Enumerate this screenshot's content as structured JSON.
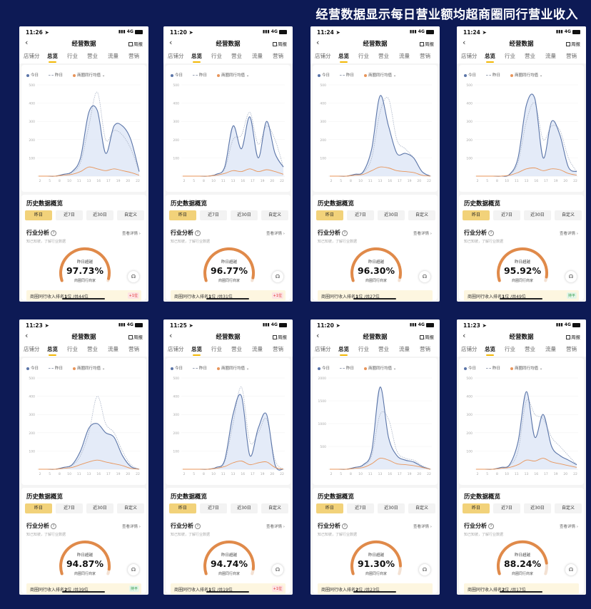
{
  "page_title": "经营数据显示每日营业额均超商圈同行营业收入",
  "common": {
    "nav_title": "经营数据",
    "weekly_label": "周报",
    "tabs": [
      "店铺分",
      "总览",
      "行业",
      "营业",
      "流量",
      "营销"
    ],
    "legend": [
      "今日",
      "昨日",
      "商圈同行均值"
    ],
    "history_title": "历史数据概览",
    "periods": [
      "昨日",
      "近7日",
      "近30日",
      "自定义"
    ],
    "industry_title": "行业分析",
    "industry_detail": "查看详情 ›",
    "industry_sub": "知己知彼，了解行业数据",
    "gauge_label": "昨日超越",
    "gauge_caption": "商圈同行商家",
    "rank_prefix": "商圈同行收入排名",
    "rank_unit": "位",
    "rank_total_prefix": "/共",
    "footnote": "* 商圈同行商家：你所在商圈主营行业的同业商家",
    "x_ticks": [
      "2",
      "5",
      "8",
      "10",
      "11",
      "13",
      "16",
      "17",
      "19",
      "20",
      "22"
    ]
  },
  "colors": {
    "today": "#5b75a8",
    "yesterday": "#a9b3c6",
    "peer": "#e8955a",
    "gauge": "#e08a4a",
    "accent": "#f2b705"
  },
  "phones": [
    {
      "time": "11:26",
      "percent": "97.73%",
      "rank": "1",
      "total": "44",
      "badge": "+1位",
      "badge_type": "up",
      "sub_info": "",
      "y_ticks": [
        "500",
        "400",
        "300",
        "200",
        "100"
      ],
      "chart_data": {
        "type": "area",
        "today": [
          0,
          0,
          0,
          2,
          5,
          20,
          70,
          72,
          25,
          55,
          55,
          40,
          5
        ],
        "yesterday": [
          0,
          0,
          0,
          2,
          4,
          15,
          55,
          92,
          40,
          50,
          45,
          30,
          5
        ],
        "peer": [
          0,
          0,
          0,
          1,
          2,
          5,
          10,
          8,
          6,
          8,
          6,
          4,
          1
        ]
      }
    },
    {
      "time": "11:20",
      "percent": "96.77%",
      "rank": "1",
      "total": "31",
      "badge": "+1位",
      "badge_type": "up",
      "sub_info": "",
      "y_ticks": [
        "500",
        "400",
        "300",
        "200",
        "100"
      ],
      "chart_data": {
        "type": "area",
        "today": [
          0,
          0,
          0,
          0,
          2,
          10,
          55,
          30,
          65,
          20,
          60,
          25,
          10
        ],
        "yesterday": [
          0,
          0,
          0,
          0,
          2,
          8,
          40,
          45,
          70,
          35,
          55,
          40,
          10
        ],
        "peer": [
          0,
          0,
          0,
          0,
          1,
          3,
          6,
          5,
          8,
          5,
          7,
          5,
          2
        ]
      }
    },
    {
      "time": "11:24",
      "percent": "96.30%",
      "rank": "1",
      "total": "27",
      "badge": "",
      "badge_type": "",
      "sub_info": "",
      "y_ticks": [
        "500",
        "400",
        "300",
        "200",
        "100"
      ],
      "chart_data": {
        "type": "area",
        "today": [
          0,
          0,
          0,
          2,
          5,
          30,
          88,
          55,
          25,
          25,
          20,
          5,
          0
        ],
        "yesterday": [
          0,
          0,
          0,
          2,
          4,
          20,
          70,
          85,
          40,
          30,
          20,
          5,
          0
        ],
        "peer": [
          0,
          0,
          0,
          1,
          2,
          6,
          10,
          9,
          6,
          5,
          4,
          1,
          0
        ]
      }
    },
    {
      "time": "11:24",
      "percent": "95.92%",
      "rank": "1",
      "total": "49",
      "badge": "持平",
      "badge_type": "flat",
      "sub_info": "",
      "y_ticks": [
        "500",
        "400",
        "300",
        "200",
        "100"
      ],
      "chart_data": {
        "type": "area",
        "today": [
          0,
          0,
          0,
          0,
          2,
          20,
          78,
          85,
          20,
          60,
          45,
          10,
          5
        ],
        "yesterday": [
          0,
          0,
          0,
          0,
          2,
          15,
          60,
          80,
          40,
          55,
          50,
          20,
          5
        ],
        "peer": [
          0,
          0,
          0,
          0,
          1,
          4,
          8,
          9,
          6,
          8,
          7,
          3,
          1
        ]
      }
    },
    {
      "time": "11:23",
      "percent": "94.87%",
      "rank": "2",
      "total": "39",
      "badge": "持平",
      "badge_type": "flat",
      "sub_info": "",
      "y_ticks": [
        "500",
        "400",
        "300",
        "200",
        "100"
      ],
      "chart_data": {
        "type": "area",
        "today": [
          0,
          0,
          0,
          2,
          5,
          20,
          45,
          50,
          40,
          35,
          15,
          3,
          0
        ],
        "yesterday": [
          0,
          0,
          0,
          2,
          4,
          15,
          40,
          80,
          50,
          40,
          20,
          5,
          0
        ],
        "peer": [
          0,
          0,
          0,
          1,
          2,
          5,
          8,
          10,
          8,
          6,
          4,
          1,
          0
        ]
      }
    },
    {
      "time": "11:25",
      "percent": "94.74%",
      "rank": "1",
      "total": "19",
      "badge": "+1位",
      "badge_type": "up",
      "sub_info": "",
      "y_ticks": [
        "500",
        "400",
        "300",
        "200",
        "100"
      ],
      "chart_data": {
        "type": "area",
        "today": [
          0,
          0,
          0,
          0,
          2,
          10,
          60,
          80,
          15,
          45,
          60,
          5,
          0
        ],
        "yesterday": [
          0,
          0,
          0,
          0,
          2,
          8,
          50,
          90,
          30,
          40,
          55,
          10,
          0
        ],
        "peer": [
          0,
          0,
          0,
          0,
          1,
          3,
          7,
          9,
          5,
          7,
          8,
          2,
          0
        ]
      }
    },
    {
      "time": "11:20",
      "percent": "91.30%",
      "rank": "2",
      "total": "23",
      "badge": "",
      "badge_type": "",
      "sub_info": "",
      "y_ticks": [
        "2000",
        "1500",
        "1000",
        "500"
      ],
      "chart_data": {
        "type": "area",
        "today": [
          0,
          0,
          0,
          2,
          5,
          20,
          90,
          35,
          15,
          10,
          8,
          3,
          0
        ],
        "yesterday": [
          0,
          0,
          0,
          2,
          4,
          15,
          60,
          55,
          20,
          12,
          10,
          4,
          0
        ],
        "peer": [
          0,
          0,
          0,
          1,
          2,
          6,
          12,
          10,
          6,
          5,
          4,
          2,
          0
        ]
      }
    },
    {
      "time": "11:23",
      "percent": "88.24%",
      "rank": "2",
      "total": "17",
      "badge": "",
      "badge_type": "",
      "sub_info": "",
      "y_ticks": [
        "500",
        "400",
        "300",
        "200",
        "100"
      ],
      "chart_data": {
        "type": "area",
        "today": [
          0,
          0,
          0,
          2,
          5,
          30,
          85,
          35,
          60,
          25,
          15,
          10,
          5
        ],
        "yesterday": [
          0,
          0,
          0,
          2,
          4,
          20,
          75,
          60,
          55,
          35,
          25,
          15,
          5
        ],
        "peer": [
          0,
          0,
          0,
          1,
          2,
          5,
          10,
          9,
          12,
          8,
          6,
          4,
          2
        ]
      }
    }
  ]
}
